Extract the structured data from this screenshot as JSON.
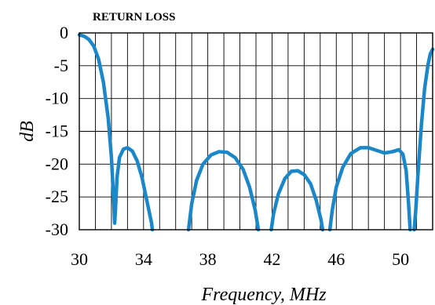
{
  "chart_data": {
    "type": "line",
    "title": "RETURN LOSS",
    "xlabel": "Frequency, MHz",
    "ylabel": "dB",
    "xlim": [
      30,
      52
    ],
    "ylim": [
      -30,
      0
    ],
    "x_ticks": [
      30,
      34,
      38,
      42,
      46,
      50
    ],
    "x_tick_labels": [
      "30",
      "34",
      "38",
      "42",
      "46",
      "50"
    ],
    "y_ticks": [
      0,
      -5,
      -10,
      -15,
      -20,
      -25,
      -30
    ],
    "y_tick_labels": [
      "0",
      "-5",
      "-10",
      "-15",
      "-20",
      "-25",
      "-30"
    ],
    "x_grid_step": 1,
    "grid": true,
    "line_color": "#1b87c9",
    "series": [
      {
        "segments": [
          [
            [
              30.0,
              -0.3
            ],
            [
              30.3,
              -0.5
            ],
            [
              30.6,
              -1.0
            ],
            [
              30.9,
              -2.0
            ],
            [
              31.2,
              -4.0
            ],
            [
              31.5,
              -7.5
            ],
            [
              31.8,
              -13.0
            ],
            [
              32.0,
              -19.0
            ],
            [
              32.15,
              -26.0
            ],
            [
              32.2,
              -29.0
            ],
            [
              32.25,
              -27.0
            ],
            [
              32.35,
              -22.0
            ],
            [
              32.5,
              -19.0
            ],
            [
              32.75,
              -17.7
            ],
            [
              33.0,
              -17.5
            ],
            [
              33.3,
              -18.0
            ],
            [
              33.6,
              -19.5
            ],
            [
              33.9,
              -22.0
            ],
            [
              34.2,
              -25.5
            ],
            [
              34.5,
              -29.0
            ],
            [
              34.55,
              -30.0
            ]
          ],
          [
            [
              36.8,
              -30.0
            ],
            [
              37.0,
              -26.0
            ],
            [
              37.3,
              -22.5
            ],
            [
              37.7,
              -20.0
            ],
            [
              38.2,
              -18.6
            ],
            [
              38.7,
              -18.1
            ],
            [
              39.2,
              -18.2
            ],
            [
              39.7,
              -19.0
            ],
            [
              40.2,
              -20.8
            ],
            [
              40.6,
              -23.5
            ],
            [
              40.95,
              -27.0
            ],
            [
              41.15,
              -30.0
            ]
          ],
          [
            [
              41.95,
              -30.0
            ],
            [
              42.1,
              -27.5
            ],
            [
              42.4,
              -24.5
            ],
            [
              42.8,
              -22.2
            ],
            [
              43.2,
              -21.1
            ],
            [
              43.6,
              -21.0
            ],
            [
              44.0,
              -21.6
            ],
            [
              44.4,
              -23.0
            ],
            [
              44.75,
              -25.5
            ],
            [
              45.05,
              -28.5
            ],
            [
              45.15,
              -30.0
            ]
          ],
          [
            [
              45.6,
              -30.0
            ],
            [
              45.75,
              -27.0
            ],
            [
              46.0,
              -23.5
            ],
            [
              46.4,
              -20.5
            ],
            [
              46.9,
              -18.4
            ],
            [
              47.5,
              -17.5
            ],
            [
              48.0,
              -17.5
            ],
            [
              48.5,
              -17.9
            ],
            [
              49.0,
              -18.3
            ],
            [
              49.5,
              -18.1
            ],
            [
              49.9,
              -17.8
            ],
            [
              50.15,
              -18.5
            ],
            [
              50.35,
              -21.0
            ],
            [
              50.5,
              -26.0
            ],
            [
              50.6,
              -30.0
            ]
          ],
          [
            [
              50.85,
              -30.0
            ],
            [
              50.95,
              -27.0
            ],
            [
              51.1,
              -21.0
            ],
            [
              51.3,
              -14.0
            ],
            [
              51.5,
              -8.5
            ],
            [
              51.7,
              -5.0
            ],
            [
              51.85,
              -3.2
            ],
            [
              52.0,
              -2.5
            ]
          ]
        ]
      }
    ]
  }
}
